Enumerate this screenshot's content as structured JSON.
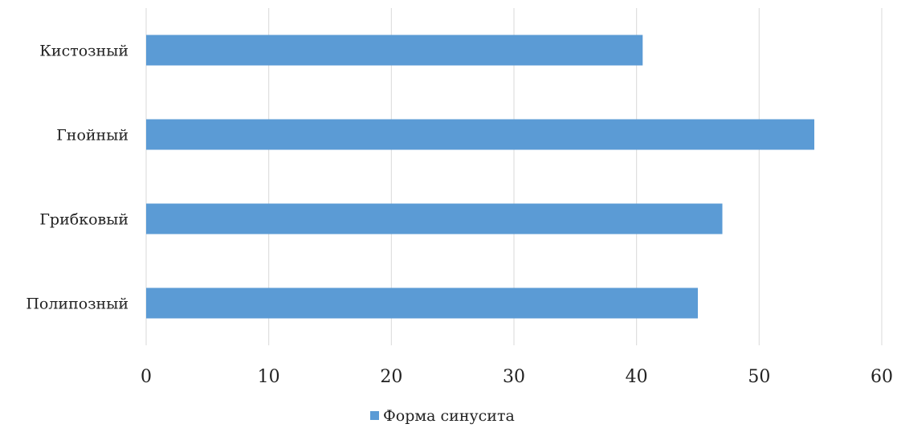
{
  "chart_data": {
    "type": "bar",
    "orientation": "horizontal",
    "categories": [
      "Кистозный",
      "Гнойный",
      "Грибковый",
      "Полипозный"
    ],
    "series": [
      {
        "name": "Форма синусита",
        "values": [
          40.5,
          54.5,
          47,
          45
        ],
        "color": "#5b9bd5"
      }
    ],
    "x_ticks": [
      "0",
      "10",
      "20",
      "30",
      "40",
      "50",
      "60"
    ],
    "xlim": [
      0,
      60
    ],
    "grid": true,
    "gridline_color": "#d9d9d9",
    "legend_position": "bottom"
  }
}
